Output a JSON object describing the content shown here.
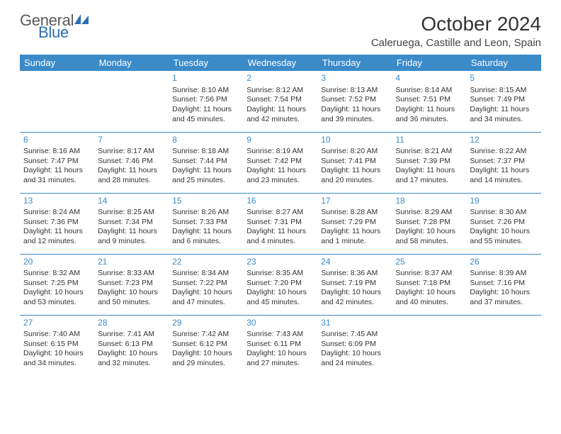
{
  "logo": {
    "part1": "General",
    "part2": "Blue"
  },
  "title": "October 2024",
  "location": "Caleruega, Castille and Leon, Spain",
  "colors": {
    "header_bg": "#3b8bc9",
    "header_text": "#ffffff",
    "daynum_color": "#3b8bc9",
    "body_text": "#333333",
    "logo_gray": "#5a5a5a",
    "logo_blue": "#2a6fb5",
    "background": "#ffffff",
    "row_border": "#3b8bc9"
  },
  "dayHeaders": [
    "Sunday",
    "Monday",
    "Tuesday",
    "Wednesday",
    "Thursday",
    "Friday",
    "Saturday"
  ],
  "weeks": [
    [
      null,
      null,
      {
        "n": "1",
        "sunrise": "8:10 AM",
        "sunset": "7:56 PM",
        "daylight": "11 hours and 45 minutes."
      },
      {
        "n": "2",
        "sunrise": "8:12 AM",
        "sunset": "7:54 PM",
        "daylight": "11 hours and 42 minutes."
      },
      {
        "n": "3",
        "sunrise": "8:13 AM",
        "sunset": "7:52 PM",
        "daylight": "11 hours and 39 minutes."
      },
      {
        "n": "4",
        "sunrise": "8:14 AM",
        "sunset": "7:51 PM",
        "daylight": "11 hours and 36 minutes."
      },
      {
        "n": "5",
        "sunrise": "8:15 AM",
        "sunset": "7:49 PM",
        "daylight": "11 hours and 34 minutes."
      }
    ],
    [
      {
        "n": "6",
        "sunrise": "8:16 AM",
        "sunset": "7:47 PM",
        "daylight": "11 hours and 31 minutes."
      },
      {
        "n": "7",
        "sunrise": "8:17 AM",
        "sunset": "7:46 PM",
        "daylight": "11 hours and 28 minutes."
      },
      {
        "n": "8",
        "sunrise": "8:18 AM",
        "sunset": "7:44 PM",
        "daylight": "11 hours and 25 minutes."
      },
      {
        "n": "9",
        "sunrise": "8:19 AM",
        "sunset": "7:42 PM",
        "daylight": "11 hours and 23 minutes."
      },
      {
        "n": "10",
        "sunrise": "8:20 AM",
        "sunset": "7:41 PM",
        "daylight": "11 hours and 20 minutes."
      },
      {
        "n": "11",
        "sunrise": "8:21 AM",
        "sunset": "7:39 PM",
        "daylight": "11 hours and 17 minutes."
      },
      {
        "n": "12",
        "sunrise": "8:22 AM",
        "sunset": "7:37 PM",
        "daylight": "11 hours and 14 minutes."
      }
    ],
    [
      {
        "n": "13",
        "sunrise": "8:24 AM",
        "sunset": "7:36 PM",
        "daylight": "11 hours and 12 minutes."
      },
      {
        "n": "14",
        "sunrise": "8:25 AM",
        "sunset": "7:34 PM",
        "daylight": "11 hours and 9 minutes."
      },
      {
        "n": "15",
        "sunrise": "8:26 AM",
        "sunset": "7:33 PM",
        "daylight": "11 hours and 6 minutes."
      },
      {
        "n": "16",
        "sunrise": "8:27 AM",
        "sunset": "7:31 PM",
        "daylight": "11 hours and 4 minutes."
      },
      {
        "n": "17",
        "sunrise": "8:28 AM",
        "sunset": "7:29 PM",
        "daylight": "11 hours and 1 minute."
      },
      {
        "n": "18",
        "sunrise": "8:29 AM",
        "sunset": "7:28 PM",
        "daylight": "10 hours and 58 minutes."
      },
      {
        "n": "19",
        "sunrise": "8:30 AM",
        "sunset": "7:26 PM",
        "daylight": "10 hours and 55 minutes."
      }
    ],
    [
      {
        "n": "20",
        "sunrise": "8:32 AM",
        "sunset": "7:25 PM",
        "daylight": "10 hours and 53 minutes."
      },
      {
        "n": "21",
        "sunrise": "8:33 AM",
        "sunset": "7:23 PM",
        "daylight": "10 hours and 50 minutes."
      },
      {
        "n": "22",
        "sunrise": "8:34 AM",
        "sunset": "7:22 PM",
        "daylight": "10 hours and 47 minutes."
      },
      {
        "n": "23",
        "sunrise": "8:35 AM",
        "sunset": "7:20 PM",
        "daylight": "10 hours and 45 minutes."
      },
      {
        "n": "24",
        "sunrise": "8:36 AM",
        "sunset": "7:19 PM",
        "daylight": "10 hours and 42 minutes."
      },
      {
        "n": "25",
        "sunrise": "8:37 AM",
        "sunset": "7:18 PM",
        "daylight": "10 hours and 40 minutes."
      },
      {
        "n": "26",
        "sunrise": "8:39 AM",
        "sunset": "7:16 PM",
        "daylight": "10 hours and 37 minutes."
      }
    ],
    [
      {
        "n": "27",
        "sunrise": "7:40 AM",
        "sunset": "6:15 PM",
        "daylight": "10 hours and 34 minutes."
      },
      {
        "n": "28",
        "sunrise": "7:41 AM",
        "sunset": "6:13 PM",
        "daylight": "10 hours and 32 minutes."
      },
      {
        "n": "29",
        "sunrise": "7:42 AM",
        "sunset": "6:12 PM",
        "daylight": "10 hours and 29 minutes."
      },
      {
        "n": "30",
        "sunrise": "7:43 AM",
        "sunset": "6:11 PM",
        "daylight": "10 hours and 27 minutes."
      },
      {
        "n": "31",
        "sunrise": "7:45 AM",
        "sunset": "6:09 PM",
        "daylight": "10 hours and 24 minutes."
      },
      null,
      null
    ]
  ]
}
